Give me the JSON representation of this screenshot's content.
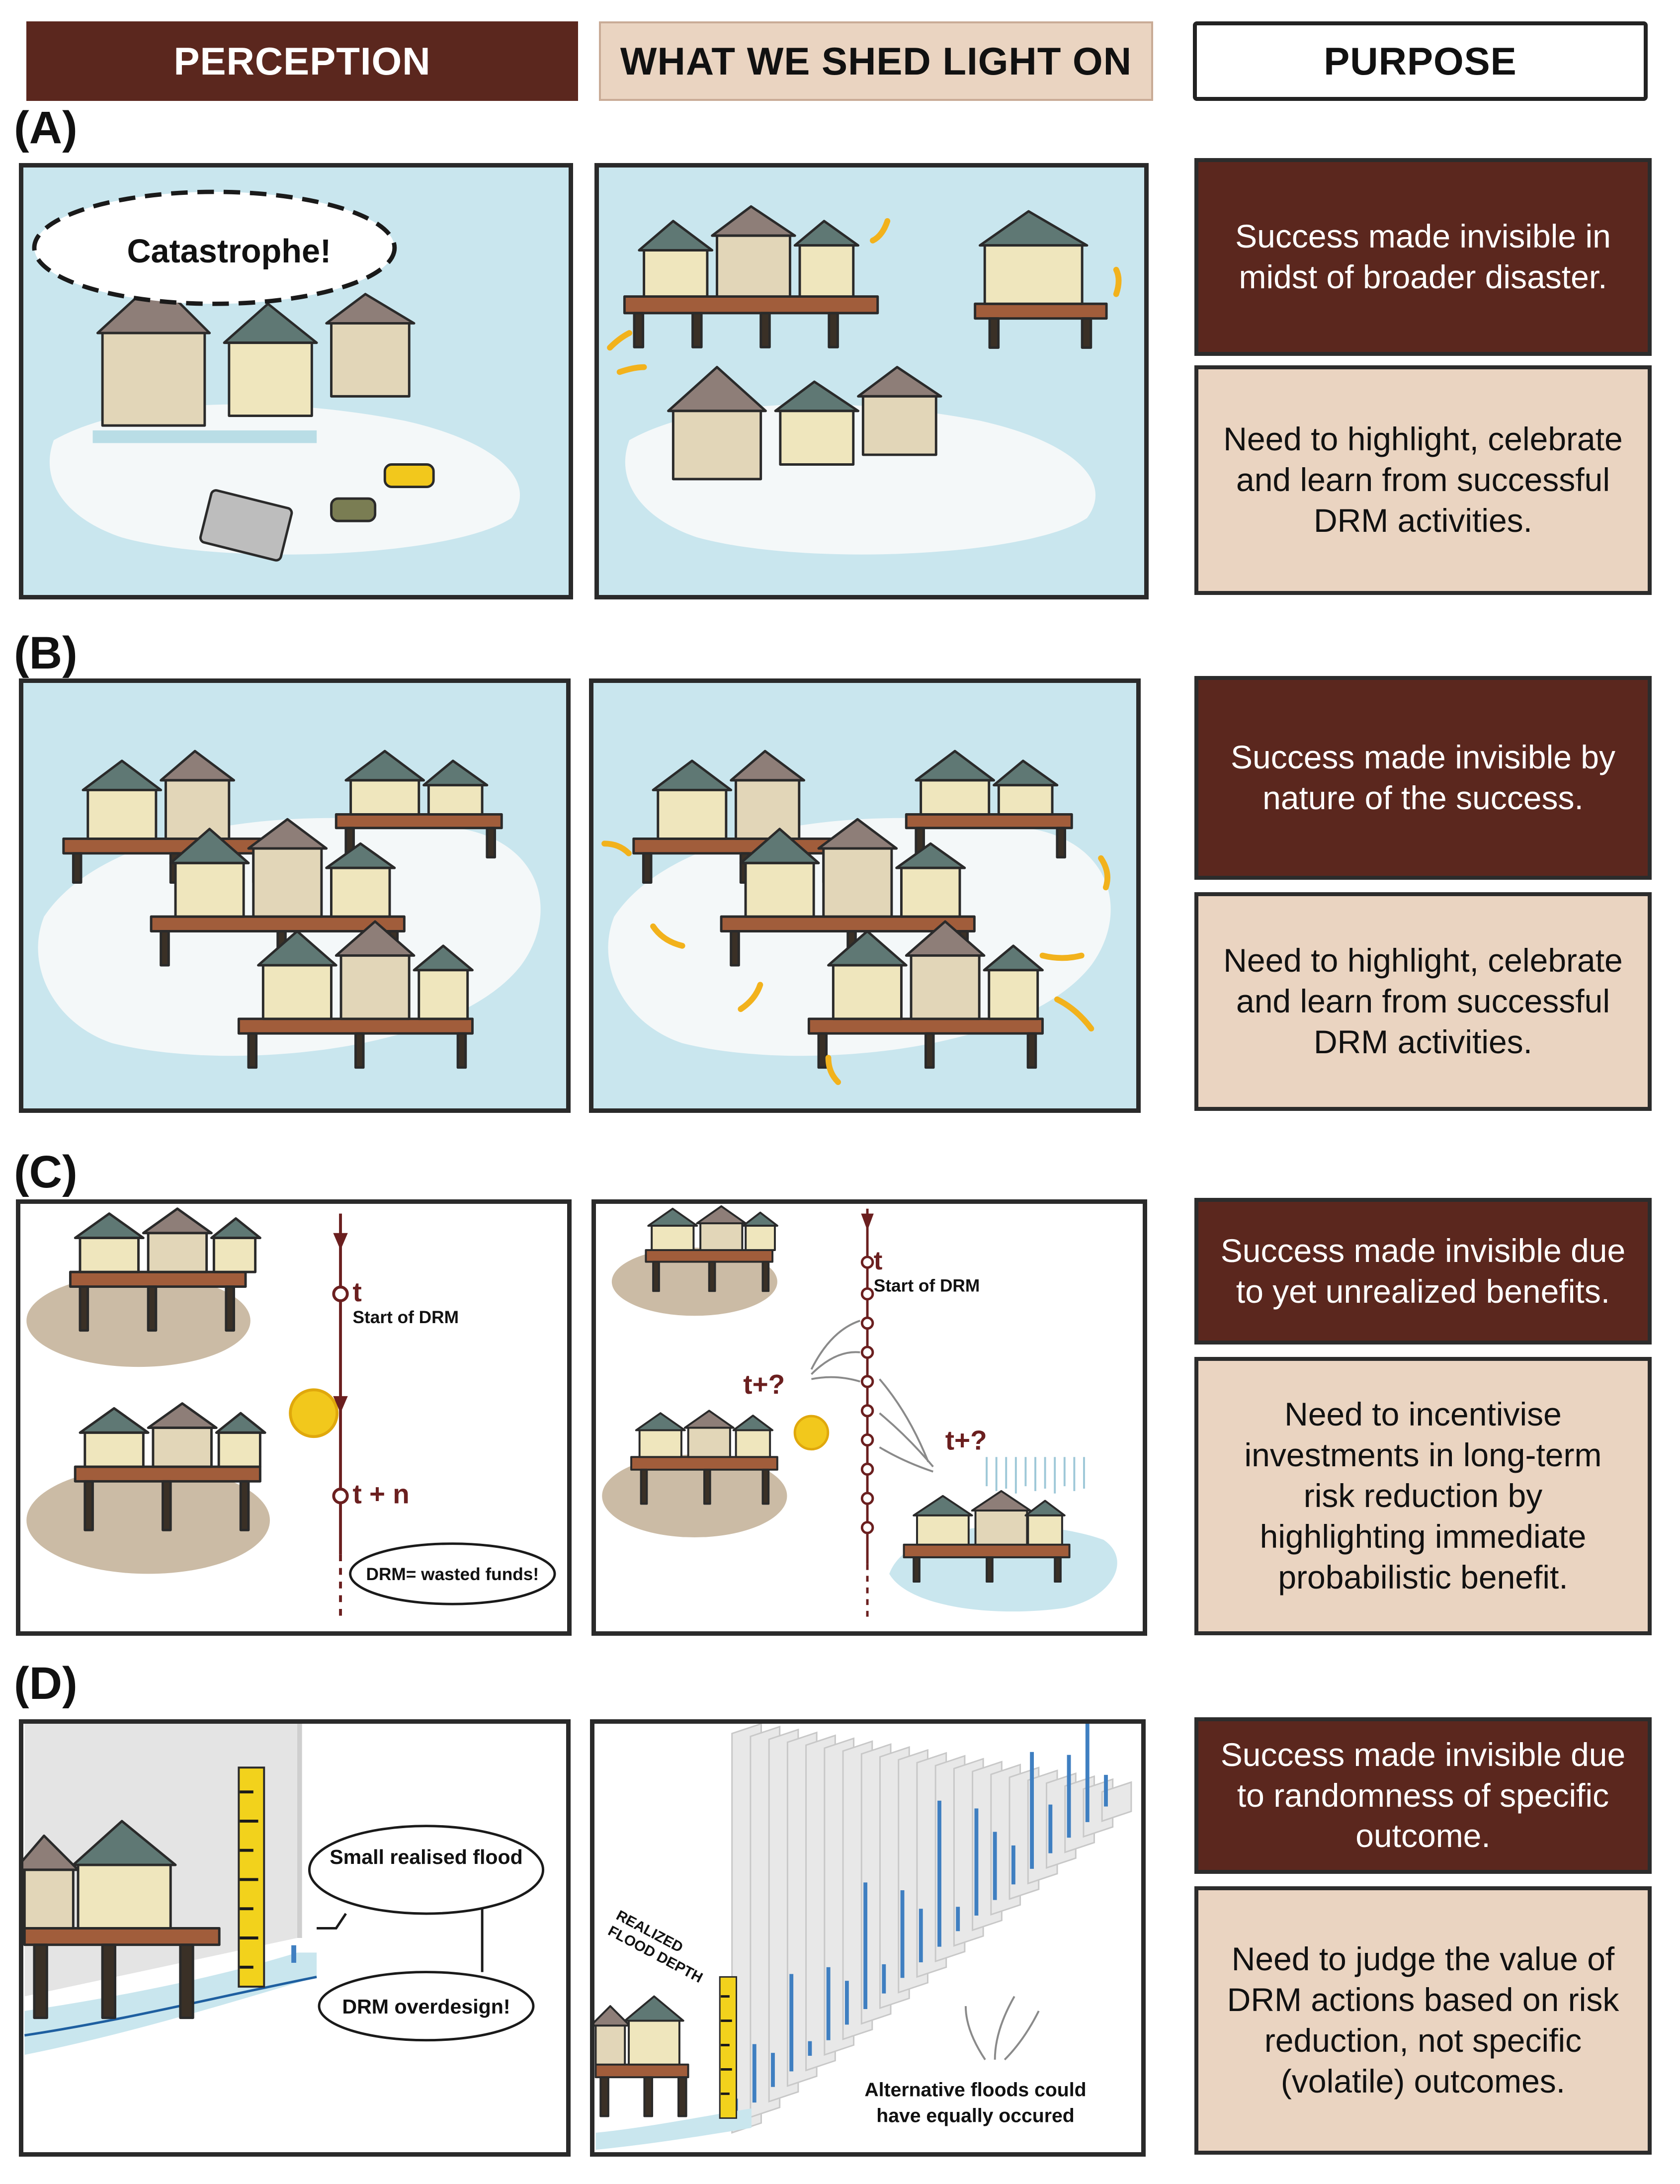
{
  "headers": {
    "perception": "PERCEPTION",
    "shed": "WHAT WE SHED  LIGHT ON",
    "purpose": "PURPOSE"
  },
  "sections": {
    "a": {
      "label": "(A)",
      "bubble": "Catastrophe!",
      "purpose_dark": "Success made invisible in midst of broader disaster.",
      "purpose_light": "Need to highlight, celebrate and learn from successful DRM activities."
    },
    "b": {
      "label": "(B)",
      "purpose_dark": "Success made invisible by nature of the success.",
      "purpose_light": "Need to highlight, celebrate and learn from successful DRM activities."
    },
    "c": {
      "label": "(C)",
      "t": "t",
      "start_of_drm": "Start of DRM",
      "t_plus_n": "t + n",
      "wasted_funds": "DRM= wasted funds!",
      "t_plus_q": "t+?",
      "purpose_dark": "Success made invisible due to yet unrealized benefits.",
      "purpose_light": "Need to incentivise investments in long-term risk reduction by highlighting immediate probabilistic benefit."
    },
    "d": {
      "label": "(D)",
      "small_flood": "Small realised flood",
      "overdesign": "DRM overdesign!",
      "realized_line1": "REALIZED",
      "realized_line2": "FLOOD DEPTH",
      "alt_line1": "Alternative floods could",
      "alt_line2": "have equally occured",
      "purpose_dark": "Success made invisible due to randomness of specific outcome.",
      "purpose_light": "Need to judge the value of DRM actions based on risk reduction, not specific (volatile) outcomes."
    }
  },
  "colors": {
    "dark_brown": "#5b271e",
    "beige": "#ead4c1",
    "water": "#c9e6ee",
    "roof": "#5f7874",
    "wall": "#efe6bd",
    "deck": "#a15d3b",
    "sun": "#f2c81c",
    "highlight": "#f2b21c"
  }
}
